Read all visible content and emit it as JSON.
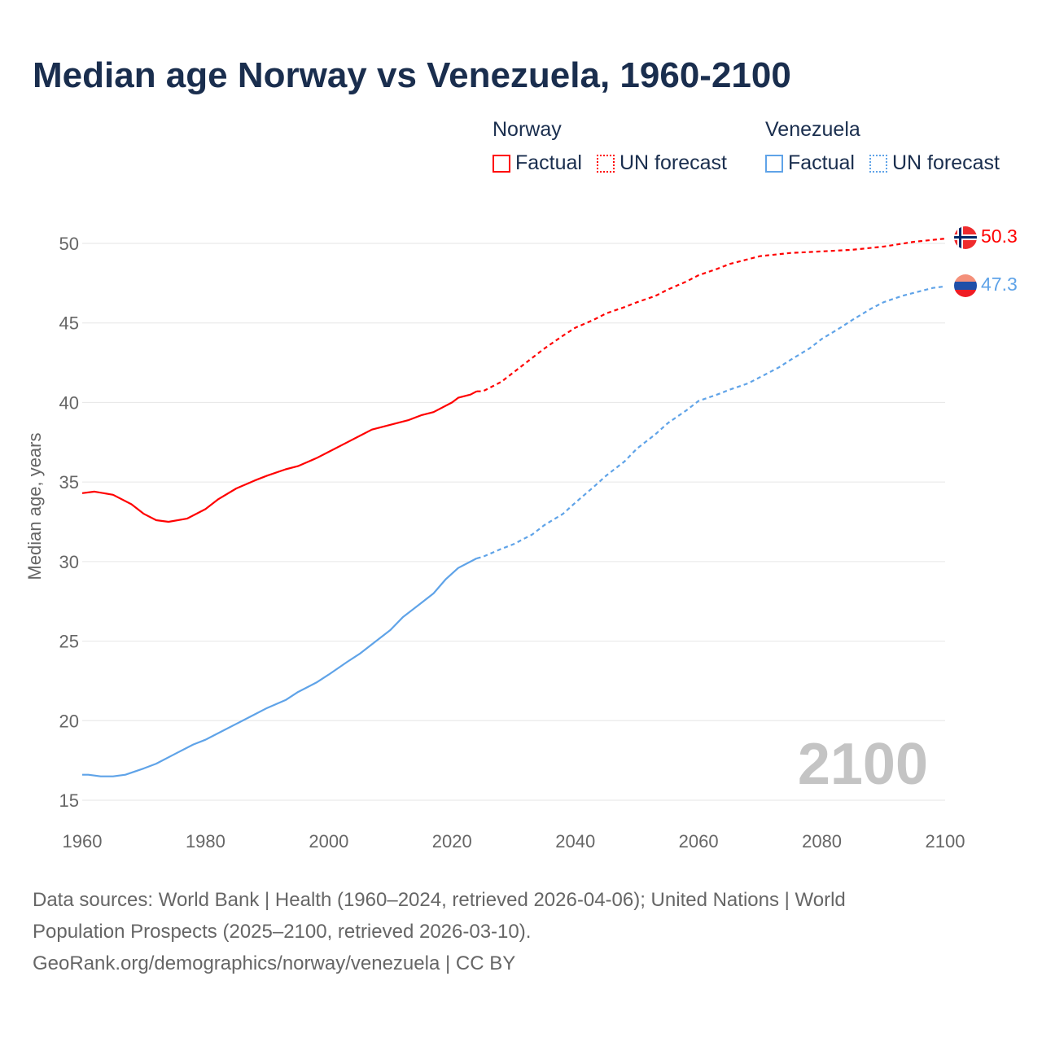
{
  "title": "Median age Norway vs Venezuela, 1960-2100",
  "legend": {
    "groups": [
      {
        "name": "Norway",
        "color": "#ff0000",
        "factual": "Factual",
        "forecast": "UN forecast"
      },
      {
        "name": "Venezuela",
        "color": "#5fa3e8",
        "factual": "Factual",
        "forecast": "UN forecast"
      }
    ]
  },
  "footer": {
    "line1": "Data sources: World Bank | Health (1960–2024, retrieved 2026-04-06); United Nations | World",
    "line2": "Population Prospects (2025–2100, retrieved 2026-03-10).",
    "line3": "GeoRank.org/demographics/norway/venezuela | CC BY"
  },
  "chart_data": {
    "type": "line",
    "title": "Median age Norway vs Venezuela, 1960-2100",
    "xlabel": "",
    "ylabel": "Median age, years",
    "xlim": [
      1960,
      2100
    ],
    "ylim": [
      15,
      50
    ],
    "x_ticks": [
      1960,
      1980,
      2000,
      2020,
      2040,
      2060,
      2080,
      2100
    ],
    "y_ticks": [
      15,
      20,
      25,
      30,
      35,
      40,
      45,
      50
    ],
    "grid": true,
    "year_watermark": "2100",
    "series": [
      {
        "name": "Norway",
        "kind": "Factual",
        "color": "#ff0000",
        "end_label": "50.3",
        "x": [
          1960,
          1962,
          1965,
          1968,
          1970,
          1972,
          1974,
          1977,
          1980,
          1982,
          1985,
          1988,
          1990,
          1993,
          1995,
          1998,
          2000,
          2003,
          2005,
          2007,
          2010,
          2013,
          2015,
          2017,
          2020,
          2021,
          2023,
          2024
        ],
        "y": [
          34.3,
          34.4,
          34.2,
          33.6,
          33.0,
          32.6,
          32.5,
          32.7,
          33.3,
          33.9,
          34.6,
          35.1,
          35.4,
          35.8,
          36.0,
          36.5,
          36.9,
          37.5,
          37.9,
          38.3,
          38.6,
          38.9,
          39.2,
          39.4,
          40.0,
          40.3,
          40.5,
          40.7
        ]
      },
      {
        "name": "Norway",
        "kind": "UN forecast",
        "color": "#ff0000",
        "x": [
          2024,
          2025,
          2028,
          2030,
          2033,
          2035,
          2038,
          2040,
          2043,
          2045,
          2048,
          2050,
          2053,
          2055,
          2058,
          2060,
          2063,
          2065,
          2068,
          2070,
          2075,
          2080,
          2085,
          2090,
          2095,
          2100
        ],
        "y": [
          40.7,
          40.7,
          41.3,
          41.9,
          42.8,
          43.4,
          44.2,
          44.7,
          45.2,
          45.6,
          46.0,
          46.3,
          46.7,
          47.1,
          47.6,
          48.0,
          48.4,
          48.7,
          49.0,
          49.2,
          49.4,
          49.5,
          49.6,
          49.8,
          50.1,
          50.3
        ]
      },
      {
        "name": "Venezuela",
        "kind": "Factual",
        "color": "#5fa3e8",
        "end_label": "47.3",
        "x": [
          1960,
          1961,
          1963,
          1965,
          1967,
          1970,
          1972,
          1975,
          1978,
          1980,
          1983,
          1985,
          1988,
          1990,
          1993,
          1995,
          1998,
          2000,
          2003,
          2005,
          2008,
          2010,
          2012,
          2015,
          2017,
          2019,
          2021,
          2024
        ],
        "y": [
          16.6,
          16.6,
          16.5,
          16.5,
          16.6,
          17.0,
          17.3,
          17.9,
          18.5,
          18.8,
          19.4,
          19.8,
          20.4,
          20.8,
          21.3,
          21.8,
          22.4,
          22.9,
          23.7,
          24.2,
          25.1,
          25.7,
          26.5,
          27.4,
          28.0,
          28.9,
          29.6,
          30.2
        ]
      },
      {
        "name": "Venezuela",
        "kind": "UN forecast",
        "color": "#5fa3e8",
        "x": [
          2024,
          2025,
          2028,
          2030,
          2033,
          2035,
          2038,
          2040,
          2043,
          2045,
          2048,
          2050,
          2053,
          2055,
          2058,
          2060,
          2063,
          2065,
          2068,
          2070,
          2073,
          2075,
          2078,
          2080,
          2083,
          2085,
          2088,
          2090,
          2093,
          2095,
          2098,
          2100
        ],
        "y": [
          30.2,
          30.3,
          30.8,
          31.1,
          31.7,
          32.3,
          33.0,
          33.7,
          34.7,
          35.4,
          36.3,
          37.1,
          38.0,
          38.7,
          39.5,
          40.1,
          40.5,
          40.8,
          41.2,
          41.6,
          42.2,
          42.7,
          43.4,
          44.0,
          44.7,
          45.2,
          45.9,
          46.3,
          46.7,
          46.9,
          47.2,
          47.3
        ]
      }
    ]
  }
}
